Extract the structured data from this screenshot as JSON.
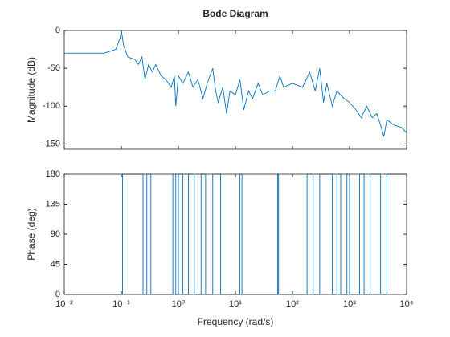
{
  "chart_data": [
    {
      "type": "line",
      "title": "Bode Diagram",
      "ylabel": "Magnitude (dB)",
      "log_x": true,
      "xlim": [
        0.01,
        10000
      ],
      "xticks": [
        0.01,
        0.1,
        1,
        10,
        100,
        1000,
        10000
      ],
      "ylim": [
        -157,
        0
      ],
      "yticks": [
        -150,
        -100,
        -50,
        0
      ],
      "x": [
        0.01,
        0.05,
        0.08,
        0.095,
        0.1,
        0.11,
        0.13,
        0.17,
        0.2,
        0.23,
        0.26,
        0.3,
        0.35,
        0.4,
        0.5,
        0.6,
        0.75,
        0.85,
        0.9,
        1.0,
        1.2,
        1.5,
        1.8,
        2.2,
        2.7,
        3.2,
        4,
        4.5,
        5,
        6,
        7,
        8,
        10,
        12,
        14,
        17,
        20,
        25,
        30,
        40,
        50,
        60,
        70,
        100,
        150,
        200,
        250,
        300,
        350,
        400,
        500,
        600,
        800,
        1000,
        1300,
        1600,
        2000,
        2500,
        3000,
        3500,
        4000,
        4500,
        6000,
        8000,
        10000
      ],
      "series": [
        {
          "color": "#0072bd",
          "values": [
            -30,
            -30,
            -25,
            -10,
            0,
            -20,
            -35,
            -38,
            -45,
            -35,
            -65,
            -45,
            -55,
            -45,
            -60,
            -65,
            -75,
            -60,
            -100,
            -60,
            -70,
            -55,
            -75,
            -65,
            -90,
            -70,
            -50,
            -80,
            -95,
            -75,
            -110,
            -80,
            -85,
            -65,
            -105,
            -80,
            -90,
            -70,
            -85,
            -80,
            -80,
            -60,
            -75,
            -70,
            -75,
            -55,
            -80,
            -50,
            -95,
            -70,
            -100,
            -80,
            -90,
            -95,
            -105,
            -115,
            -100,
            -115,
            -110,
            -125,
            -140,
            -118,
            -125,
            -128,
            -135
          ]
        }
      ]
    },
    {
      "type": "line",
      "ylabel": "Phase (deg)",
      "xlabel": "Frequency (rad/s)",
      "log_x": true,
      "xlim": [
        0.01,
        10000
      ],
      "xticks": [
        {
          "value": 0.01,
          "label": "10⁻²"
        },
        {
          "value": 0.1,
          "label": "10⁻¹"
        },
        {
          "value": 1,
          "label": "10⁰"
        },
        {
          "value": 10,
          "label": "10¹"
        },
        {
          "value": 100,
          "label": "10²"
        },
        {
          "value": 1000,
          "label": "10³"
        },
        {
          "value": 10000,
          "label": "10⁴"
        }
      ],
      "ylim": [
        0,
        180
      ],
      "yticks": [
        0,
        45,
        90,
        135,
        180
      ],
      "x": [
        0.01,
        0.105,
        0.105,
        0.24,
        0.24,
        0.28,
        0.28,
        0.33,
        0.33,
        0.8,
        0.8,
        0.9,
        0.9,
        1.0,
        1.0,
        1.2,
        1.2,
        1.5,
        1.5,
        1.9,
        1.9,
        2.5,
        2.5,
        3,
        3,
        4,
        4,
        5.5,
        5.5,
        12,
        12,
        13,
        13,
        55,
        55,
        57,
        57,
        180,
        180,
        230,
        230,
        300,
        300,
        500,
        500,
        600,
        600,
        700,
        700,
        900,
        900,
        1000,
        1000,
        1500,
        1500,
        1800,
        1800,
        2300,
        2300,
        3500,
        3500,
        4500,
        4500,
        10000
      ],
      "series": [
        {
          "color": "#0072bd",
          "values": [
            0,
            0,
            180,
            180,
            0,
            0,
            180,
            180,
            0,
            0,
            180,
            180,
            0,
            0,
            180,
            180,
            0,
            0,
            180,
            180,
            0,
            0,
            180,
            180,
            0,
            0,
            180,
            180,
            0,
            0,
            180,
            180,
            0,
            0,
            180,
            180,
            0,
            0,
            180,
            180,
            0,
            0,
            180,
            180,
            0,
            0,
            180,
            180,
            0,
            0,
            180,
            180,
            0,
            0,
            180,
            180,
            0,
            0,
            180,
            180,
            0,
            0,
            180,
            180
          ]
        }
      ]
    }
  ]
}
